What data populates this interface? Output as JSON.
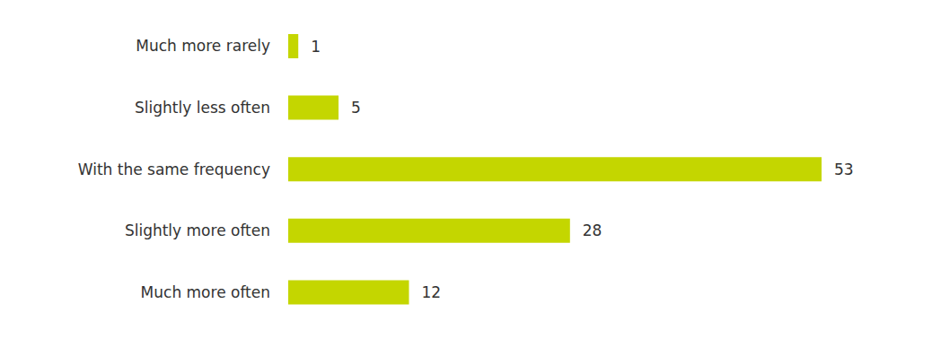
{
  "chart_data": {
    "type": "bar",
    "orientation": "horizontal",
    "categories": [
      "Much more rarely",
      "Slightly less often",
      "With the same frequency",
      "Slightly more often",
      "Much more often"
    ],
    "values": [
      1,
      5,
      53,
      28,
      12
    ],
    "color": "#c4d600",
    "xlim": [
      0,
      53
    ],
    "data_labels": true,
    "tick_labels": "y",
    "grid": false
  }
}
